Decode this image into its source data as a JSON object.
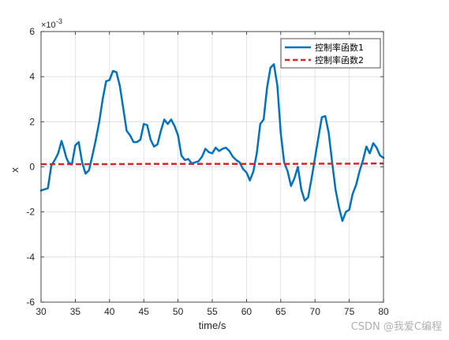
{
  "chart_data": {
    "type": "line",
    "title": "",
    "xlabel": "time/s",
    "ylabel": "x",
    "y_exponent_label": "×10",
    "y_exponent_power": "-3",
    "xlim": [
      30,
      80
    ],
    "ylim": [
      -6,
      6
    ],
    "x_ticks": [
      30,
      35,
      40,
      45,
      50,
      55,
      60,
      65,
      70,
      75,
      80
    ],
    "y_ticks": [
      -6,
      -4,
      -2,
      0,
      2,
      4,
      6
    ],
    "x_tick_labels": [
      "30",
      "35",
      "40",
      "45",
      "50",
      "55",
      "60",
      "65",
      "70",
      "75",
      "80"
    ],
    "y_tick_labels": [
      "-6",
      "-4",
      "-2",
      "0",
      "2",
      "4",
      "6"
    ],
    "grid": true,
    "legend_position": "top-right",
    "series": [
      {
        "name": "控制率函数1",
        "color": "#0072bd",
        "style": "solid",
        "x": [
          30,
          30.5,
          31,
          31.5,
          32,
          32.5,
          33,
          33.3,
          33.7,
          34,
          34.5,
          35,
          35.5,
          36,
          36.5,
          37,
          37.5,
          38,
          38.5,
          39,
          39.5,
          40,
          40.5,
          41,
          41.5,
          42,
          42.5,
          43,
          43.5,
          44,
          44.5,
          45,
          45.5,
          46,
          46.5,
          47,
          47.5,
          48,
          48.5,
          49,
          49.5,
          50,
          50.5,
          51,
          51.5,
          52,
          52.5,
          53,
          53.5,
          54,
          54.5,
          55,
          55.5,
          56,
          56.5,
          57,
          57.5,
          58,
          58.5,
          59,
          59.5,
          60,
          60.5,
          61,
          61.5,
          62,
          62.5,
          63,
          63.5,
          64,
          64.5,
          65,
          65.5,
          66,
          66.5,
          67,
          67.5,
          68,
          68.5,
          69,
          69.5,
          70,
          70.5,
          71,
          71.5,
          72,
          72.5,
          73,
          73.5,
          74,
          74.5,
          75,
          75.5,
          76,
          76.5,
          77,
          77.5,
          78,
          78.5,
          79,
          79.5,
          80
        ],
        "values": [
          -1.05,
          -1.0,
          -0.95,
          0.05,
          0.3,
          0.6,
          1.15,
          0.85,
          0.4,
          0.2,
          0.1,
          0.95,
          1.1,
          0.2,
          -0.3,
          -0.15,
          0.5,
          1.2,
          2.0,
          3.0,
          3.8,
          3.85,
          4.25,
          4.2,
          3.6,
          2.6,
          1.6,
          1.4,
          1.1,
          1.1,
          1.2,
          1.9,
          1.85,
          1.2,
          0.9,
          1.0,
          1.6,
          2.1,
          1.9,
          2.1,
          1.8,
          1.4,
          0.5,
          0.3,
          0.35,
          0.15,
          0.2,
          0.25,
          0.45,
          0.8,
          0.65,
          0.6,
          0.85,
          0.7,
          0.8,
          0.85,
          0.7,
          0.45,
          0.3,
          0.2,
          -0.1,
          -0.25,
          -0.6,
          -0.2,
          0.6,
          1.9,
          2.1,
          3.5,
          4.4,
          4.55,
          3.6,
          1.5,
          0.2,
          -0.2,
          -0.85,
          -0.5,
          0.0,
          -1.0,
          -1.5,
          -1.35,
          -0.5,
          0.4,
          1.3,
          2.2,
          2.25,
          1.5,
          0.2,
          -1.0,
          -1.8,
          -2.4,
          -2.0,
          -1.9,
          -1.2,
          -0.8,
          -0.2,
          0.3,
          0.9,
          0.6,
          1.05,
          0.85,
          0.5,
          0.4
        ]
      },
      {
        "name": "控制率函数2",
        "color": "#d62728",
        "style": "dashed",
        "x": [
          30,
          35,
          40,
          45,
          50,
          55,
          60,
          65,
          70,
          75,
          80
        ],
        "values": [
          0.12,
          0.12,
          0.12,
          0.13,
          0.13,
          0.13,
          0.13,
          0.13,
          0.14,
          0.14,
          0.15
        ]
      }
    ]
  },
  "watermark": {
    "text": "CSDN @我爱C编程",
    "color": "#b0b0b0"
  }
}
